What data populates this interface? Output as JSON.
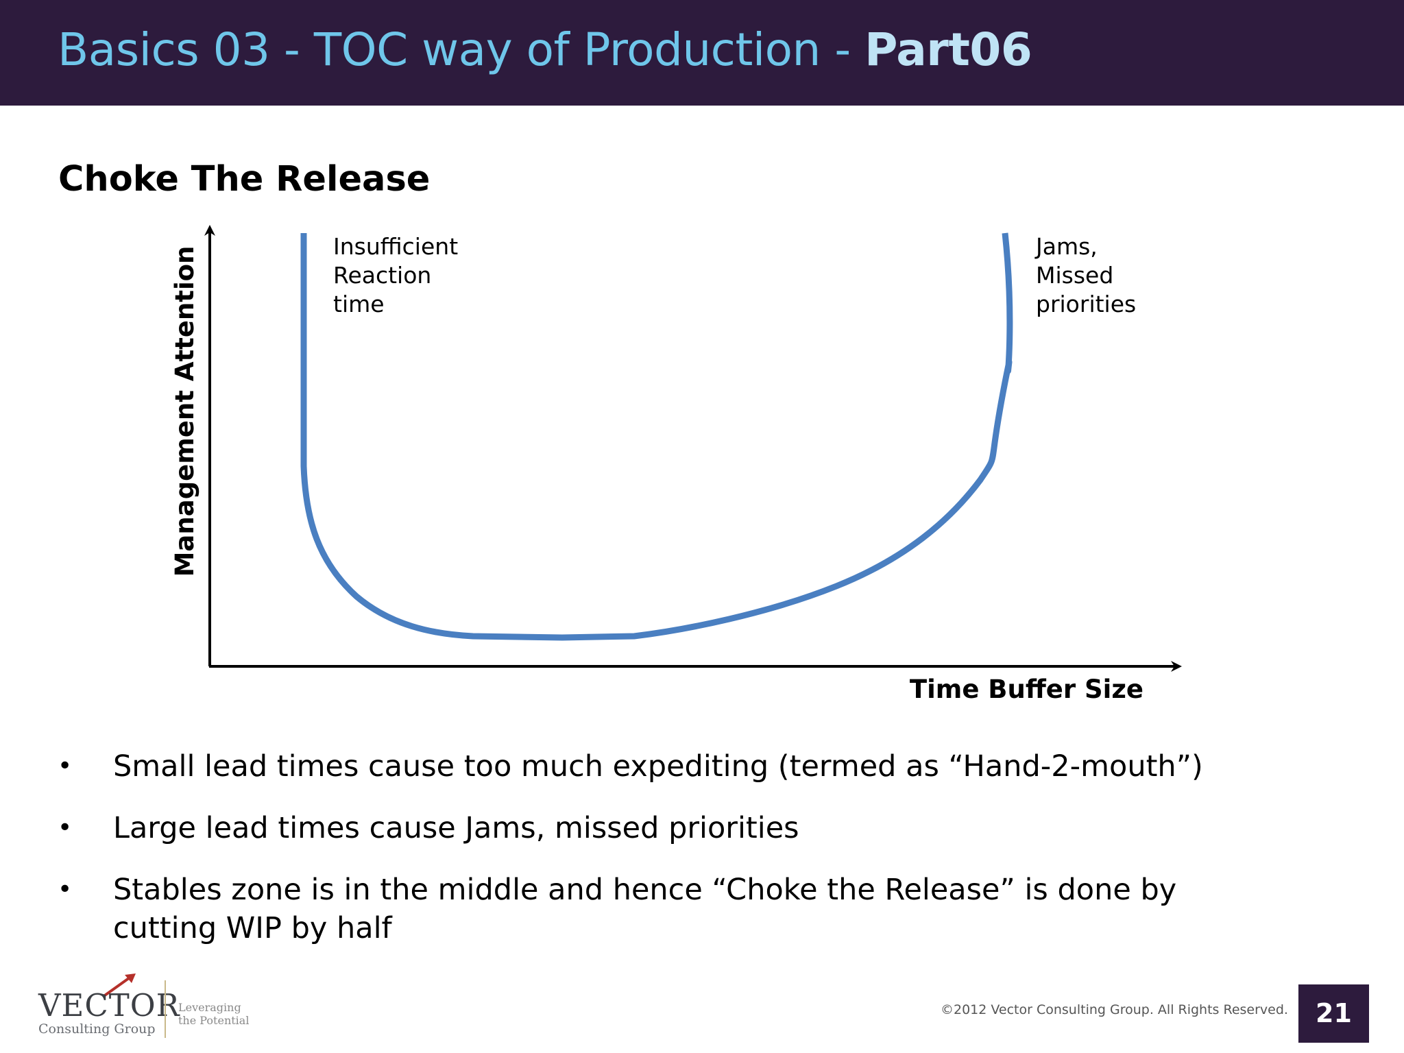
{
  "header": {
    "title": "Basics 03 - TOC way of Production - ",
    "title_bold": "Part06"
  },
  "slide": {
    "subtitle": "Choke The Release"
  },
  "diagram": {
    "y_axis_label": "Management Attention",
    "x_axis_label": "Time Buffer Size",
    "left_annotation": [
      "Insufficient",
      "Reaction",
      "time"
    ],
    "right_annotation": [
      "Jams,",
      "Missed",
      "priorities"
    ],
    "curve_color": "#4a7fc1"
  },
  "bullets": [
    "Small lead times cause too much expediting (termed as “Hand-2-mouth”)",
    "Large lead times cause Jams, missed priorities",
    "Stables zone is in the middle and hence “Choke the Release” is done by cutting WIP by half"
  ],
  "footer": {
    "logo_name": "VECTOR",
    "logo_sub": "Consulting Group",
    "logo_tagline": [
      "Leveraging",
      "the Potential"
    ],
    "copyright": "©2012 Vector Consulting Group. All  Rights Reserved.",
    "page_number": "21"
  }
}
